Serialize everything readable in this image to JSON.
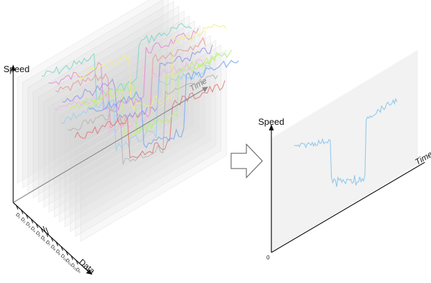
{
  "left_panel": {
    "y_axis_label": "Speed",
    "time_axis_label": "Time",
    "data_axis_label": "Data",
    "day_ticks": [
      "D₁",
      "D₂",
      "D₃",
      "D₄",
      "D₅",
      "D₆",
      "D₇",
      "D₈",
      "D₉",
      "D₁₀",
      "D₁₁",
      "D₁₂",
      "Dₙ"
    ],
    "series_colors": [
      "#7fd6c8",
      "#e58ad8",
      "#e99c9c",
      "#9b93e6",
      "#c7ee6e",
      "#f3f07a",
      "#f0b6e8",
      "#9ad1f0",
      "#b6b6b6",
      "#e07a7a",
      "#b1f07a",
      "#7aa8f0"
    ]
  },
  "right_panel": {
    "y_axis_label": "Speed",
    "time_axis_label": "Time",
    "origin_label": "0",
    "series_color": "#8fc8ec"
  },
  "arrow_icon": "right-arrow-icon"
}
